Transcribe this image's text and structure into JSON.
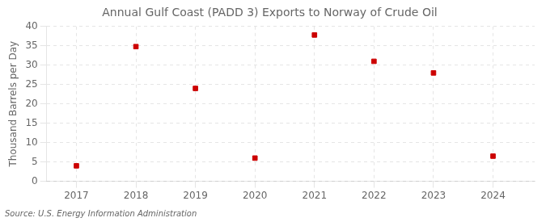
{
  "chart_data": {
    "type": "scatter",
    "title": "Annual Gulf Coast (PADD 3) Exports to Norway of Crude Oil",
    "ylabel": "Thousand Barrels per Day",
    "annotation": "Source: U.S. Energy Information Administration",
    "x": [
      2017,
      2018,
      2019,
      2020,
      2021,
      2022,
      2023,
      2024
    ],
    "values": [
      4.0,
      34.8,
      24.0,
      6.0,
      37.8,
      31.0,
      28.0,
      6.5
    ],
    "color": "#cc0000",
    "marker": "square",
    "xlim": [
      2016.5,
      2024.7
    ],
    "xticks": [
      2017,
      2018,
      2019,
      2020,
      2021,
      2022,
      2023,
      2024
    ],
    "ylim": [
      0,
      40
    ],
    "yticks": [
      0,
      5,
      10,
      15,
      20,
      25,
      30,
      35,
      40
    ],
    "grid": true
  }
}
